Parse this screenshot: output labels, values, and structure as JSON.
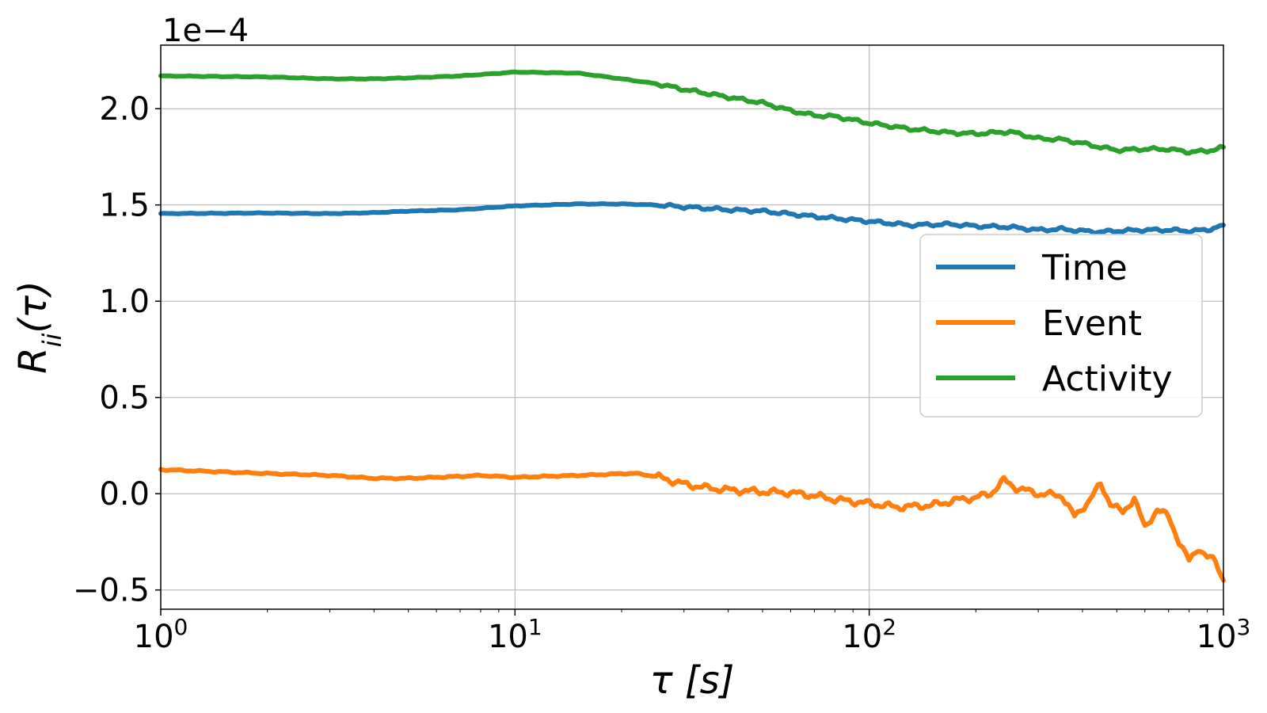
{
  "chart_data": {
    "type": "line",
    "title": "",
    "xlabel": "τ [s]",
    "ylabel": "R_ii(τ)",
    "xscale": "log",
    "xlim": [
      1,
      1000
    ],
    "ylim": [
      -0.6,
      2.33
    ],
    "y_offset_text": "1e−4",
    "grid": true,
    "legend_position": "center-right",
    "x_ticks": [
      {
        "value": 1,
        "base": "10",
        "exp": "0"
      },
      {
        "value": 10,
        "base": "10",
        "exp": "1"
      },
      {
        "value": 100,
        "base": "10",
        "exp": "2"
      },
      {
        "value": 1000,
        "base": "10",
        "exp": "3"
      }
    ],
    "y_ticks": [
      {
        "value": -0.5,
        "label": "−0.5"
      },
      {
        "value": 0.0,
        "label": "0.0"
      },
      {
        "value": 0.5,
        "label": "0.5"
      },
      {
        "value": 1.0,
        "label": "1.0"
      },
      {
        "value": 1.5,
        "label": "1.5"
      },
      {
        "value": 2.0,
        "label": "2.0"
      }
    ],
    "series": [
      {
        "name": "Time",
        "color": "#1f77b4",
        "points": [
          [
            1,
            1.455
          ],
          [
            2,
            1.458
          ],
          [
            3,
            1.455
          ],
          [
            4,
            1.46
          ],
          [
            5,
            1.468
          ],
          [
            7,
            1.475
          ],
          [
            10,
            1.495
          ],
          [
            15,
            1.505
          ],
          [
            20,
            1.505
          ],
          [
            25,
            1.5
          ],
          [
            30,
            1.49
          ],
          [
            40,
            1.475
          ],
          [
            50,
            1.468
          ],
          [
            70,
            1.44
          ],
          [
            100,
            1.415
          ],
          [
            130,
            1.395
          ],
          [
            170,
            1.4
          ],
          [
            200,
            1.39
          ],
          [
            250,
            1.385
          ],
          [
            300,
            1.37
          ],
          [
            350,
            1.375
          ],
          [
            400,
            1.365
          ],
          [
            450,
            1.36
          ],
          [
            500,
            1.365
          ],
          [
            600,
            1.37
          ],
          [
            700,
            1.37
          ],
          [
            800,
            1.365
          ],
          [
            900,
            1.37
          ],
          [
            1000,
            1.395
          ]
        ]
      },
      {
        "name": "Event",
        "color": "#ff7f0e",
        "points": [
          [
            1,
            0.125
          ],
          [
            2,
            0.105
          ],
          [
            3,
            0.095
          ],
          [
            4,
            0.08
          ],
          [
            5,
            0.08
          ],
          [
            7,
            0.09
          ],
          [
            8,
            0.095
          ],
          [
            10,
            0.085
          ],
          [
            12,
            0.09
          ],
          [
            15,
            0.095
          ],
          [
            18,
            0.1
          ],
          [
            20,
            0.105
          ],
          [
            22,
            0.105
          ],
          [
            25,
            0.09
          ],
          [
            30,
            0.05
          ],
          [
            35,
            0.03
          ],
          [
            40,
            0.02
          ],
          [
            50,
            0.01
          ],
          [
            60,
            0.005
          ],
          [
            70,
            -0.01
          ],
          [
            80,
            -0.03
          ],
          [
            100,
            -0.05
          ],
          [
            120,
            -0.07
          ],
          [
            150,
            -0.06
          ],
          [
            180,
            -0.03
          ],
          [
            200,
            -0.02
          ],
          [
            220,
            0.0
          ],
          [
            240,
            0.07
          ],
          [
            260,
            0.03
          ],
          [
            300,
            0.0
          ],
          [
            350,
            -0.01
          ],
          [
            380,
            -0.12
          ],
          [
            420,
            -0.03
          ],
          [
            450,
            0.05
          ],
          [
            480,
            -0.05
          ],
          [
            520,
            -0.1
          ],
          [
            560,
            -0.02
          ],
          [
            600,
            -0.18
          ],
          [
            650,
            -0.08
          ],
          [
            700,
            -0.12
          ],
          [
            750,
            -0.25
          ],
          [
            800,
            -0.35
          ],
          [
            850,
            -0.28
          ],
          [
            900,
            -0.33
          ],
          [
            950,
            -0.35
          ],
          [
            1000,
            -0.45
          ]
        ]
      },
      {
        "name": "Activity",
        "color": "#2ca02c",
        "points": [
          [
            1,
            2.17
          ],
          [
            2,
            2.165
          ],
          [
            3,
            2.155
          ],
          [
            4,
            2.155
          ],
          [
            5,
            2.16
          ],
          [
            7,
            2.17
          ],
          [
            10,
            2.19
          ],
          [
            15,
            2.185
          ],
          [
            20,
            2.155
          ],
          [
            25,
            2.13
          ],
          [
            30,
            2.1
          ],
          [
            40,
            2.06
          ],
          [
            50,
            2.03
          ],
          [
            60,
            1.99
          ],
          [
            70,
            1.965
          ],
          [
            80,
            1.96
          ],
          [
            100,
            1.925
          ],
          [
            130,
            1.895
          ],
          [
            170,
            1.875
          ],
          [
            200,
            1.87
          ],
          [
            250,
            1.88
          ],
          [
            300,
            1.845
          ],
          [
            350,
            1.84
          ],
          [
            400,
            1.82
          ],
          [
            450,
            1.8
          ],
          [
            500,
            1.785
          ],
          [
            600,
            1.79
          ],
          [
            700,
            1.79
          ],
          [
            800,
            1.775
          ],
          [
            900,
            1.78
          ],
          [
            1000,
            1.8
          ]
        ]
      }
    ]
  }
}
